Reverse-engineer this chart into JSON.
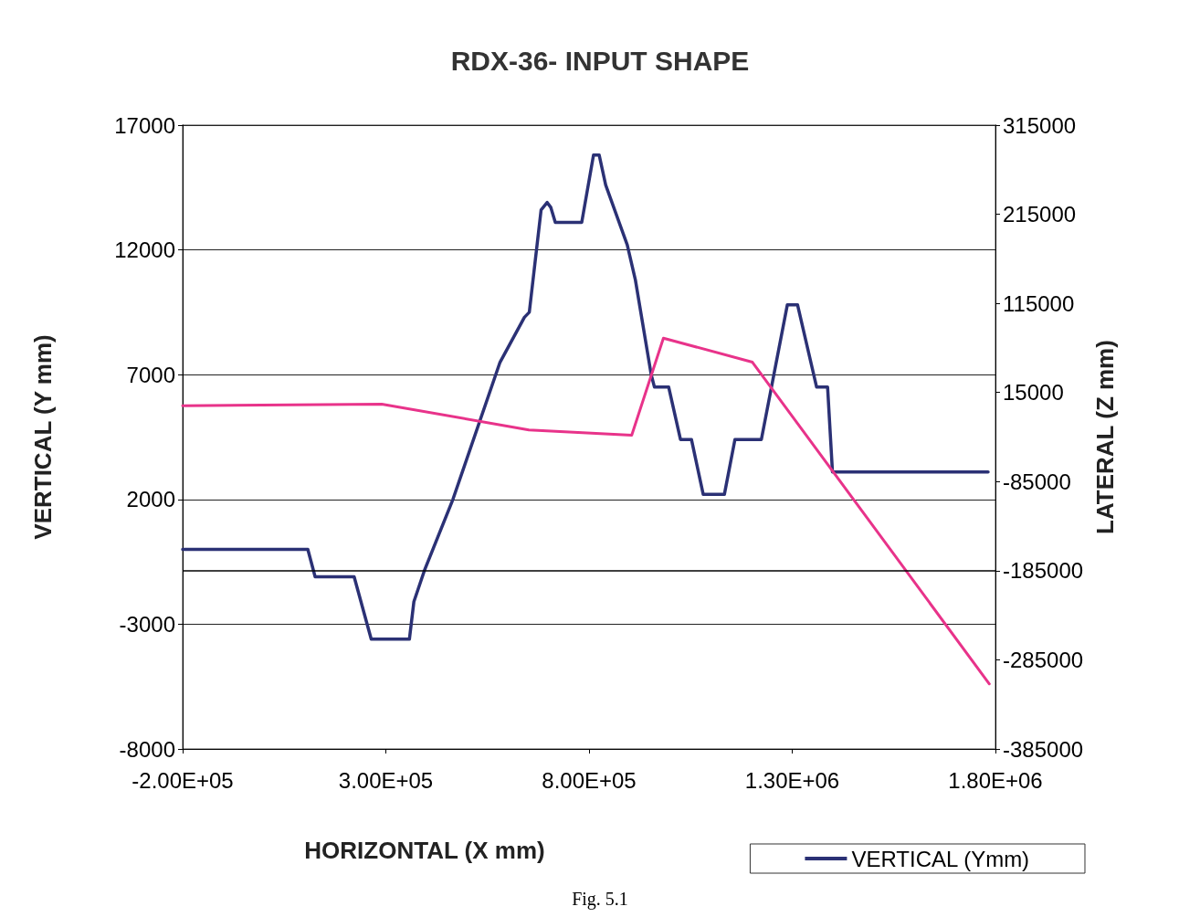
{
  "chart_data": {
    "type": "line",
    "title": "RDX-36- INPUT SHAPE",
    "xlabel": "HORIZONTAL (X mm)",
    "ylabel": "VERTICAL (Y mm)",
    "y2label": "LATERAL (Z mm)",
    "xlim": [
      -200000,
      1800000
    ],
    "xticks": [
      {
        "value": -200000,
        "label": "-2.00E+05"
      },
      {
        "value": 300000,
        "label": "3.00E+05"
      },
      {
        "value": 800000,
        "label": "8.00E+05"
      },
      {
        "value": 1300000,
        "label": "1.30E+06"
      },
      {
        "value": 1800000,
        "label": "1.80E+06"
      }
    ],
    "ylim": [
      -8000,
      17000
    ],
    "yticks": [
      -8000,
      -3000,
      2000,
      7000,
      12000,
      17000
    ],
    "y2lim": [
      -385000,
      315000
    ],
    "y2ticks": [
      -385000,
      -285000,
      -185000,
      -85000,
      15000,
      115000,
      215000,
      315000
    ],
    "grid": "y",
    "legend": "bottom right",
    "line_style": "solid",
    "marker": "none",
    "series": [
      {
        "name": "VERTICAL (Ymm)",
        "color": "#2b3175",
        "x": [
          -200000,
          108000,
          126000,
          222000,
          264000,
          358000,
          369000,
          396000,
          465000,
          581000,
          641000,
          653000,
          682000,
          697000,
          706000,
          717000,
          782000,
          811000,
          825000,
          841000,
          894000,
          914000,
          953000,
          961000,
          996000,
          1025000,
          1052000,
          1081000,
          1133000,
          1159000,
          1224000,
          1288000,
          1313000,
          1360000,
          1387000,
          1399000,
          1782000
        ],
        "values": [
          0,
          0,
          -1100,
          -1100,
          -3600,
          -3600,
          -2100,
          -800,
          2000,
          7500,
          9300,
          9500,
          13600,
          13900,
          13700,
          13100,
          13100,
          15800,
          15800,
          14600,
          12200,
          10800,
          7000,
          6500,
          6500,
          4400,
          4400,
          2200,
          2200,
          4400,
          4400,
          9800,
          9800,
          6500,
          6500,
          3100,
          3100
        ]
      },
      {
        "color": "#e8338a",
        "axis": "y2",
        "x": [
          -200000,
          290000,
          652000,
          905000,
          983000,
          1202000,
          1785000
        ],
        "values": [
          0,
          2000,
          -27000,
          -33000,
          76000,
          49000,
          -312000
        ]
      }
    ],
    "ref_lines": [
      {
        "axis": "y2",
        "value": -185000,
        "color": "#000000"
      }
    ],
    "annotations": [
      "Fig. 5.1"
    ]
  }
}
